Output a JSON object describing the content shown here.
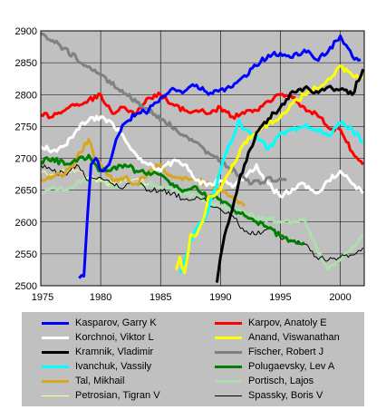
{
  "chart_data": {
    "type": "line",
    "title": "",
    "xlabel": "",
    "ylabel": "",
    "xlim": [
      1975,
      2002
    ],
    "ylim": [
      2500,
      2900
    ],
    "x_ticks": [
      1975,
      1980,
      1985,
      1990,
      1995,
      2000
    ],
    "y_ticks": [
      2500,
      2550,
      2600,
      2650,
      2700,
      2750,
      2800,
      2850,
      2900
    ],
    "grid": true,
    "background": "#c0c0c0",
    "legend_position": "bottom",
    "series": [
      {
        "name": "Kasparov, Garry K",
        "color": "#0000ff",
        "x": [
          1978.2,
          1978.6,
          1978.9,
          1979.2,
          1979.6,
          1980.1,
          1980.7,
          1981.3,
          1982,
          1983,
          1984,
          1985,
          1986,
          1987,
          1988,
          1989,
          1990,
          1991,
          1992,
          1993,
          1994,
          1995,
          1996,
          1997,
          1998,
          1999,
          2000,
          2000.3,
          2001,
          2001.7
        ],
        "y": [
          2512,
          2515,
          2610,
          2690,
          2700,
          2680,
          2690,
          2730,
          2755,
          2770,
          2775,
          2795,
          2810,
          2805,
          2815,
          2800,
          2808,
          2812,
          2830,
          2845,
          2862,
          2865,
          2858,
          2870,
          2855,
          2868,
          2892,
          2880,
          2860,
          2855
        ]
      },
      {
        "name": "Karpov, Anatoly E",
        "color": "#ff0000",
        "x": [
          1975,
          1976,
          1977,
          1978,
          1979,
          1980,
          1981,
          1982,
          1983,
          1984,
          1985,
          1986,
          1987,
          1988,
          1989,
          1990,
          1991,
          1992,
          1993,
          1994,
          1995,
          1996,
          1997,
          1998,
          1999,
          2000,
          2001,
          2001.9
        ],
        "y": [
          2768,
          2765,
          2775,
          2785,
          2792,
          2800,
          2770,
          2780,
          2770,
          2795,
          2800,
          2785,
          2775,
          2775,
          2770,
          2780,
          2765,
          2770,
          2775,
          2790,
          2800,
          2795,
          2780,
          2770,
          2748,
          2745,
          2710,
          2690
        ]
      },
      {
        "name": "Korchnoi, Viktor L",
        "color": "#ffffff",
        "x": [
          1975,
          1976,
          1977,
          1978,
          1979,
          1980,
          1981,
          1982,
          1983,
          1984,
          1985,
          1986,
          1987,
          1988,
          1989,
          1990,
          1991,
          1992,
          1993,
          1994,
          1995,
          1996,
          1997,
          1998,
          1999,
          2000,
          2001,
          2001.9
        ],
        "y": [
          2718,
          2712,
          2720,
          2745,
          2760,
          2765,
          2755,
          2730,
          2705,
          2690,
          2680,
          2695,
          2690,
          2665,
          2660,
          2665,
          2655,
          2668,
          2690,
          2660,
          2640,
          2652,
          2660,
          2645,
          2665,
          2680,
          2660,
          2645
        ]
      },
      {
        "name": "Anand, Viswanathan",
        "color": "#ffff00",
        "x": [
          1986.3,
          1986.6,
          1987,
          1987.5,
          1988,
          1988.5,
          1989,
          1990,
          1991,
          1992,
          1993,
          1994,
          1995,
          1996,
          1997,
          1998,
          1999,
          2000,
          2001,
          2001.9
        ],
        "y": [
          2525,
          2545,
          2520,
          2580,
          2580,
          2600,
          2640,
          2650,
          2690,
          2725,
          2740,
          2755,
          2765,
          2785,
          2800,
          2810,
          2825,
          2845,
          2830,
          2828
        ]
      },
      {
        "name": "Kramnik, Vladimir",
        "color": "#000000",
        "x": [
          1989.7,
          1990,
          1990.5,
          1991,
          1991.5,
          1992,
          1992.5,
          1993,
          1993.5,
          1994,
          1995,
          1996,
          1997,
          1998,
          1999,
          2000,
          2001,
          2001.9
        ],
        "y": [
          2505,
          2545,
          2590,
          2620,
          2660,
          2690,
          2715,
          2740,
          2752,
          2762,
          2780,
          2805,
          2810,
          2805,
          2812,
          2808,
          2800,
          2840
        ]
      },
      {
        "name": "Fischer, Robert J",
        "color": "#808080",
        "x": [
          1975,
          1975.4,
          1992.6,
          1993,
          1993.5,
          1994,
          1994.5,
          1995,
          1995.5
        ],
        "y": [
          2895,
          2892,
          2660,
          2665,
          2662,
          2670,
          2664,
          2668,
          2665
        ]
      },
      {
        "name": "Ivanchuk, Vassily",
        "color": "#00ffff",
        "x": [
          1986.6,
          1987,
          1987.5,
          1988,
          1988.5,
          1989,
          1989.5,
          1990,
          1990.5,
          1991,
          1991.5,
          1992,
          1993,
          1994,
          1995,
          1996,
          1997,
          1998,
          1999,
          2000,
          2001,
          2001.9
        ],
        "y": [
          2520,
          2540,
          2570,
          2590,
          2600,
          2620,
          2650,
          2680,
          2710,
          2730,
          2760,
          2745,
          2735,
          2715,
          2740,
          2745,
          2750,
          2745,
          2735,
          2755,
          2745,
          2725
        ]
      },
      {
        "name": "Polugaevsky, Lev A",
        "color": "#008000",
        "x": [
          1975,
          1976,
          1977,
          1978,
          1979,
          1980,
          1981,
          1982,
          1983,
          1984,
          1985,
          1986,
          1987,
          1988,
          1989,
          1990,
          1991,
          1992,
          1993,
          1994,
          1995,
          1996,
          1997
        ],
        "y": [
          2695,
          2700,
          2690,
          2695,
          2705,
          2680,
          2685,
          2690,
          2680,
          2678,
          2675,
          2660,
          2650,
          2655,
          2640,
          2635,
          2620,
          2610,
          2600,
          2590,
          2578,
          2570,
          2568
        ]
      },
      {
        "name": "Tal, Mikhail",
        "color": "#daa520",
        "x": [
          1975,
          1976,
          1977,
          1978,
          1979,
          1979.5,
          1980,
          1981,
          1982,
          1983,
          1984,
          1985,
          1986,
          1987,
          1988,
          1989,
          1990,
          1991,
          1992
        ],
        "y": [
          2668,
          2672,
          2675,
          2700,
          2730,
          2700,
          2690,
          2665,
          2670,
          2660,
          2680,
          2690,
          2670,
          2670,
          2665,
          2660,
          2650,
          2640,
          2625
        ]
      },
      {
        "name": "Portisch, Lajos",
        "color": "#b0ddb0",
        "x": [
          1975,
          1976,
          1977,
          1978,
          1979,
          1980,
          1981,
          1982,
          1983,
          1984,
          1985,
          1986,
          1987,
          1988,
          1989,
          1990,
          1991,
          1992,
          1993,
          1994,
          1995,
          1996,
          1997,
          1998,
          1999,
          2000,
          2001,
          2001.9
        ],
        "y": [
          2645,
          2655,
          2650,
          2660,
          2670,
          2665,
          2655,
          2665,
          2660,
          2660,
          2655,
          2650,
          2645,
          2640,
          2630,
          2625,
          2620,
          2615,
          2605,
          2605,
          2600,
          2600,
          2605,
          2560,
          2525,
          2540,
          2560,
          2580
        ]
      },
      {
        "name": "Petrosian, Tigran V",
        "color": "#ffff99",
        "x": [
          1975,
          1976,
          1977,
          1978,
          1979,
          1980,
          1981,
          1982,
          1983,
          1984
        ],
        "y": [
          2678,
          2675,
          2680,
          2682,
          2670,
          2665,
          2660,
          2665,
          2668,
          2660
        ]
      },
      {
        "name": "Spassky, Boris V",
        "color": "#000000",
        "x": [
          1975,
          1976,
          1977,
          1978,
          1979,
          1980,
          1981,
          1982,
          1983,
          1984,
          1985,
          1986,
          1987,
          1988,
          1989,
          1990,
          1991,
          1992,
          1993,
          1994,
          1995,
          1996,
          1997,
          1998,
          1999,
          2000,
          2001,
          2001.9
        ],
        "y": [
          2690,
          2680,
          2675,
          2690,
          2665,
          2670,
          2660,
          2655,
          2660,
          2650,
          2650,
          2645,
          2635,
          2640,
          2630,
          2620,
          2610,
          2585,
          2580,
          2590,
          2575,
          2570,
          2565,
          2545,
          2540,
          2545,
          2548,
          2560
        ]
      }
    ]
  }
}
